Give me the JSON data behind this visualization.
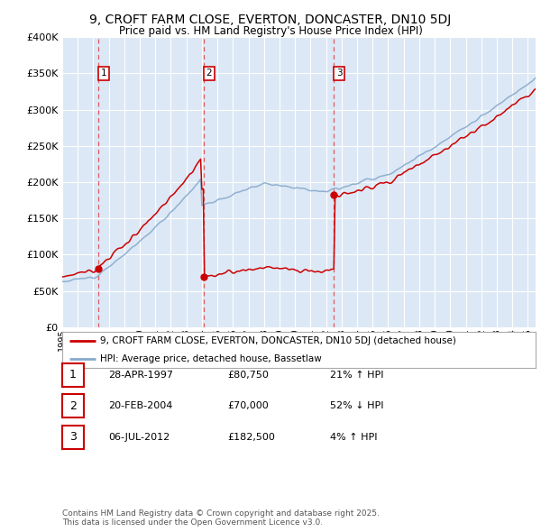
{
  "title1": "9, CROFT FARM CLOSE, EVERTON, DONCASTER, DN10 5DJ",
  "title2": "Price paid vs. HM Land Registry's House Price Index (HPI)",
  "ylabel_vals": [
    0,
    50000,
    100000,
    150000,
    200000,
    250000,
    300000,
    350000,
    400000
  ],
  "xmin": 1995.0,
  "xmax": 2025.5,
  "ymin": 0,
  "ymax": 400000,
  "sale_dates": [
    1997.32,
    2004.13,
    2012.51
  ],
  "sale_prices": [
    80750,
    70000,
    182500
  ],
  "sale_labels": [
    "1",
    "2",
    "3"
  ],
  "legend_property": "9, CROFT FARM CLOSE, EVERTON, DONCASTER, DN10 5DJ (detached house)",
  "legend_hpi": "HPI: Average price, detached house, Bassetlaw",
  "table_rows": [
    [
      "1",
      "28-APR-1997",
      "£80,750",
      "21% ↑ HPI"
    ],
    [
      "2",
      "20-FEB-2004",
      "£70,000",
      "52% ↓ HPI"
    ],
    [
      "3",
      "06-JUL-2012",
      "£182,500",
      "4% ↑ HPI"
    ]
  ],
  "footnote": "Contains HM Land Registry data © Crown copyright and database right 2025.\nThis data is licensed under the Open Government Licence v3.0.",
  "line_color_property": "#cc0000",
  "line_color_hpi": "#88aacc",
  "bg_color": "#dce8f5",
  "grid_color": "#ffffff"
}
